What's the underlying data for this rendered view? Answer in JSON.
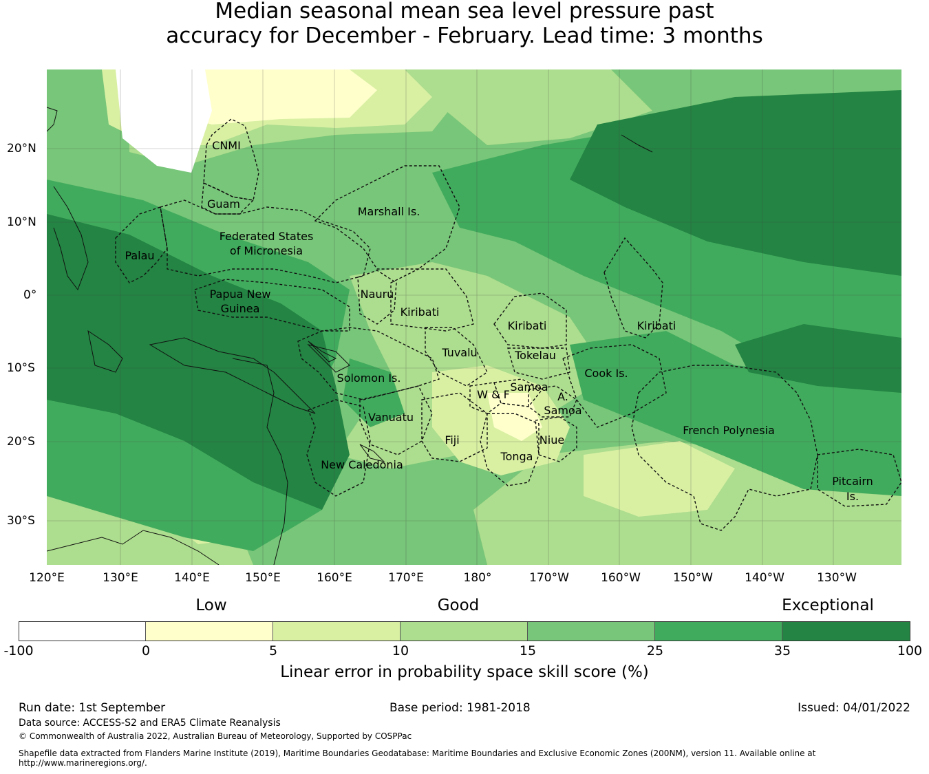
{
  "title": {
    "line1": "Median seasonal mean sea level pressure past",
    "line2": "accuracy for December - February. Lead time: 3 months"
  },
  "map": {
    "lon_labels": [
      "120°E",
      "130°E",
      "140°E",
      "150°E",
      "160°E",
      "170°E",
      "180°",
      "170°W",
      "160°W",
      "150°W",
      "140°W",
      "130°W"
    ],
    "lat_labels": [
      "20°N",
      "10°N",
      "0°",
      "10°S",
      "20°S",
      "30°S"
    ],
    "regions": [
      "CNMI",
      "Guam",
      "Marshall Is.",
      "Federated States",
      "of Micronesia",
      "Palau",
      "Papua New",
      "Guinea",
      "Nauru",
      "Kiribati",
      "Kiribati",
      "Kiribati",
      "Tuvalu",
      "Tokelau",
      "Cook Is.",
      "Solomon Is.",
      "Samoa",
      "W & F",
      "A.",
      "Samoa",
      "Vanuatu",
      "Fiji",
      "Niue",
      "Tonga",
      "New Caledonia",
      "French Polynesia",
      "Pitcairn",
      "Is."
    ],
    "colors": {
      "c_neg": "#ffffff",
      "c0": "#ffffcc",
      "c5": "#d9f0a3",
      "c10": "#addd8e",
      "c15": "#78c679",
      "c25": "#41ab5d",
      "c35": "#238443"
    }
  },
  "legend": {
    "categories": [
      "Low",
      "Good",
      "Exceptional"
    ],
    "ticks": [
      "-100",
      "0",
      "5",
      "10",
      "15",
      "25",
      "35",
      "100"
    ],
    "colors": [
      "#ffffff",
      "#ffffcc",
      "#d9f0a3",
      "#addd8e",
      "#78c679",
      "#41ab5d",
      "#238443"
    ],
    "label": "Linear error in probability space skill score (%)"
  },
  "footer": {
    "run_date": "Run date: 1st September",
    "base_period": "Base period: 1981-2018",
    "issued": "Issued: 04/01/2022",
    "data_source": "Data source: ACCESS-S2 and ERA5 Climate Reanalysis",
    "copyright": "© Commonwealth of Australia 2022, Australian Bureau of Meteorology, Supported by COSPPac",
    "shapefile_1": "Shapefile data extracted from Flanders Marine Institute (2019), Maritime Boundaries Geodatabase: Maritime Boundaries and Exclusive Economic Zones (200NM), version 11. Available online at",
    "shapefile_2": "http://www.marineregions.org/."
  }
}
